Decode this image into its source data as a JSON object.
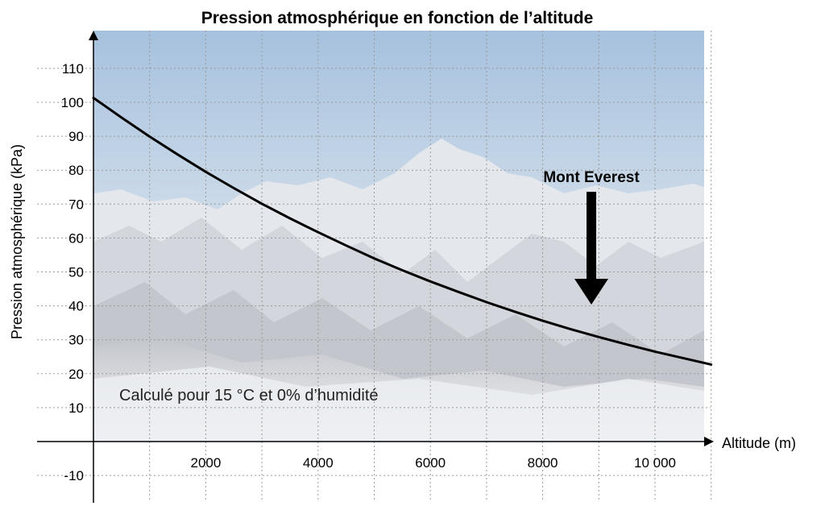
{
  "chart_data": {
    "type": "line",
    "title": "Pression atmosphérique en fonction de l’altitude",
    "xlabel": "Altitude (m)",
    "ylabel": "Pression atmosphérique (kPa)",
    "xlim": [
      0,
      11000
    ],
    "ylim": [
      -20,
      120
    ],
    "x_ticks": [
      {
        "value": 2000,
        "label": "2000"
      },
      {
        "value": 4000,
        "label": "4000"
      },
      {
        "value": 6000,
        "label": "6000"
      },
      {
        "value": 8000,
        "label": "8000"
      },
      {
        "value": 10000,
        "label": "10 000"
      }
    ],
    "y_ticks": [
      {
        "value": -10,
        "label": "-10"
      },
      {
        "value": 10,
        "label": "10"
      },
      {
        "value": 20,
        "label": "20"
      },
      {
        "value": 30,
        "label": "30"
      },
      {
        "value": 40,
        "label": "40"
      },
      {
        "value": 50,
        "label": "50"
      },
      {
        "value": 60,
        "label": "60"
      },
      {
        "value": 70,
        "label": "70"
      },
      {
        "value": 80,
        "label": "80"
      },
      {
        "value": 90,
        "label": "90"
      },
      {
        "value": 100,
        "label": "100"
      },
      {
        "value": 110,
        "label": "110"
      }
    ],
    "grid": true,
    "series": [
      {
        "x": [
          0,
          500,
          1000,
          1500,
          2000,
          2500,
          3000,
          3500,
          4000,
          4500,
          5000,
          5500,
          6000,
          6500,
          7000,
          7500,
          8000,
          8500,
          9000,
          9500,
          10000,
          10500,
          11000
        ],
        "values": [
          101.3,
          95.5,
          89.9,
          84.6,
          79.5,
          74.7,
          70.1,
          65.8,
          61.7,
          57.8,
          54.0,
          50.5,
          47.2,
          44.1,
          41.1,
          38.3,
          35.6,
          33.1,
          30.8,
          28.6,
          26.5,
          24.6,
          22.7
        ]
      }
    ],
    "annotations": [
      {
        "type": "text",
        "text": "Calculé pour 15 °C et 0% d’humidité"
      },
      {
        "type": "arrow",
        "text": "Mont Everest",
        "x": 8848
      }
    ],
    "colors": {
      "line": "#000000",
      "grid": "#9a9a9a",
      "sky_top": "#a9c4e0",
      "snow": "#eef0f4"
    }
  }
}
